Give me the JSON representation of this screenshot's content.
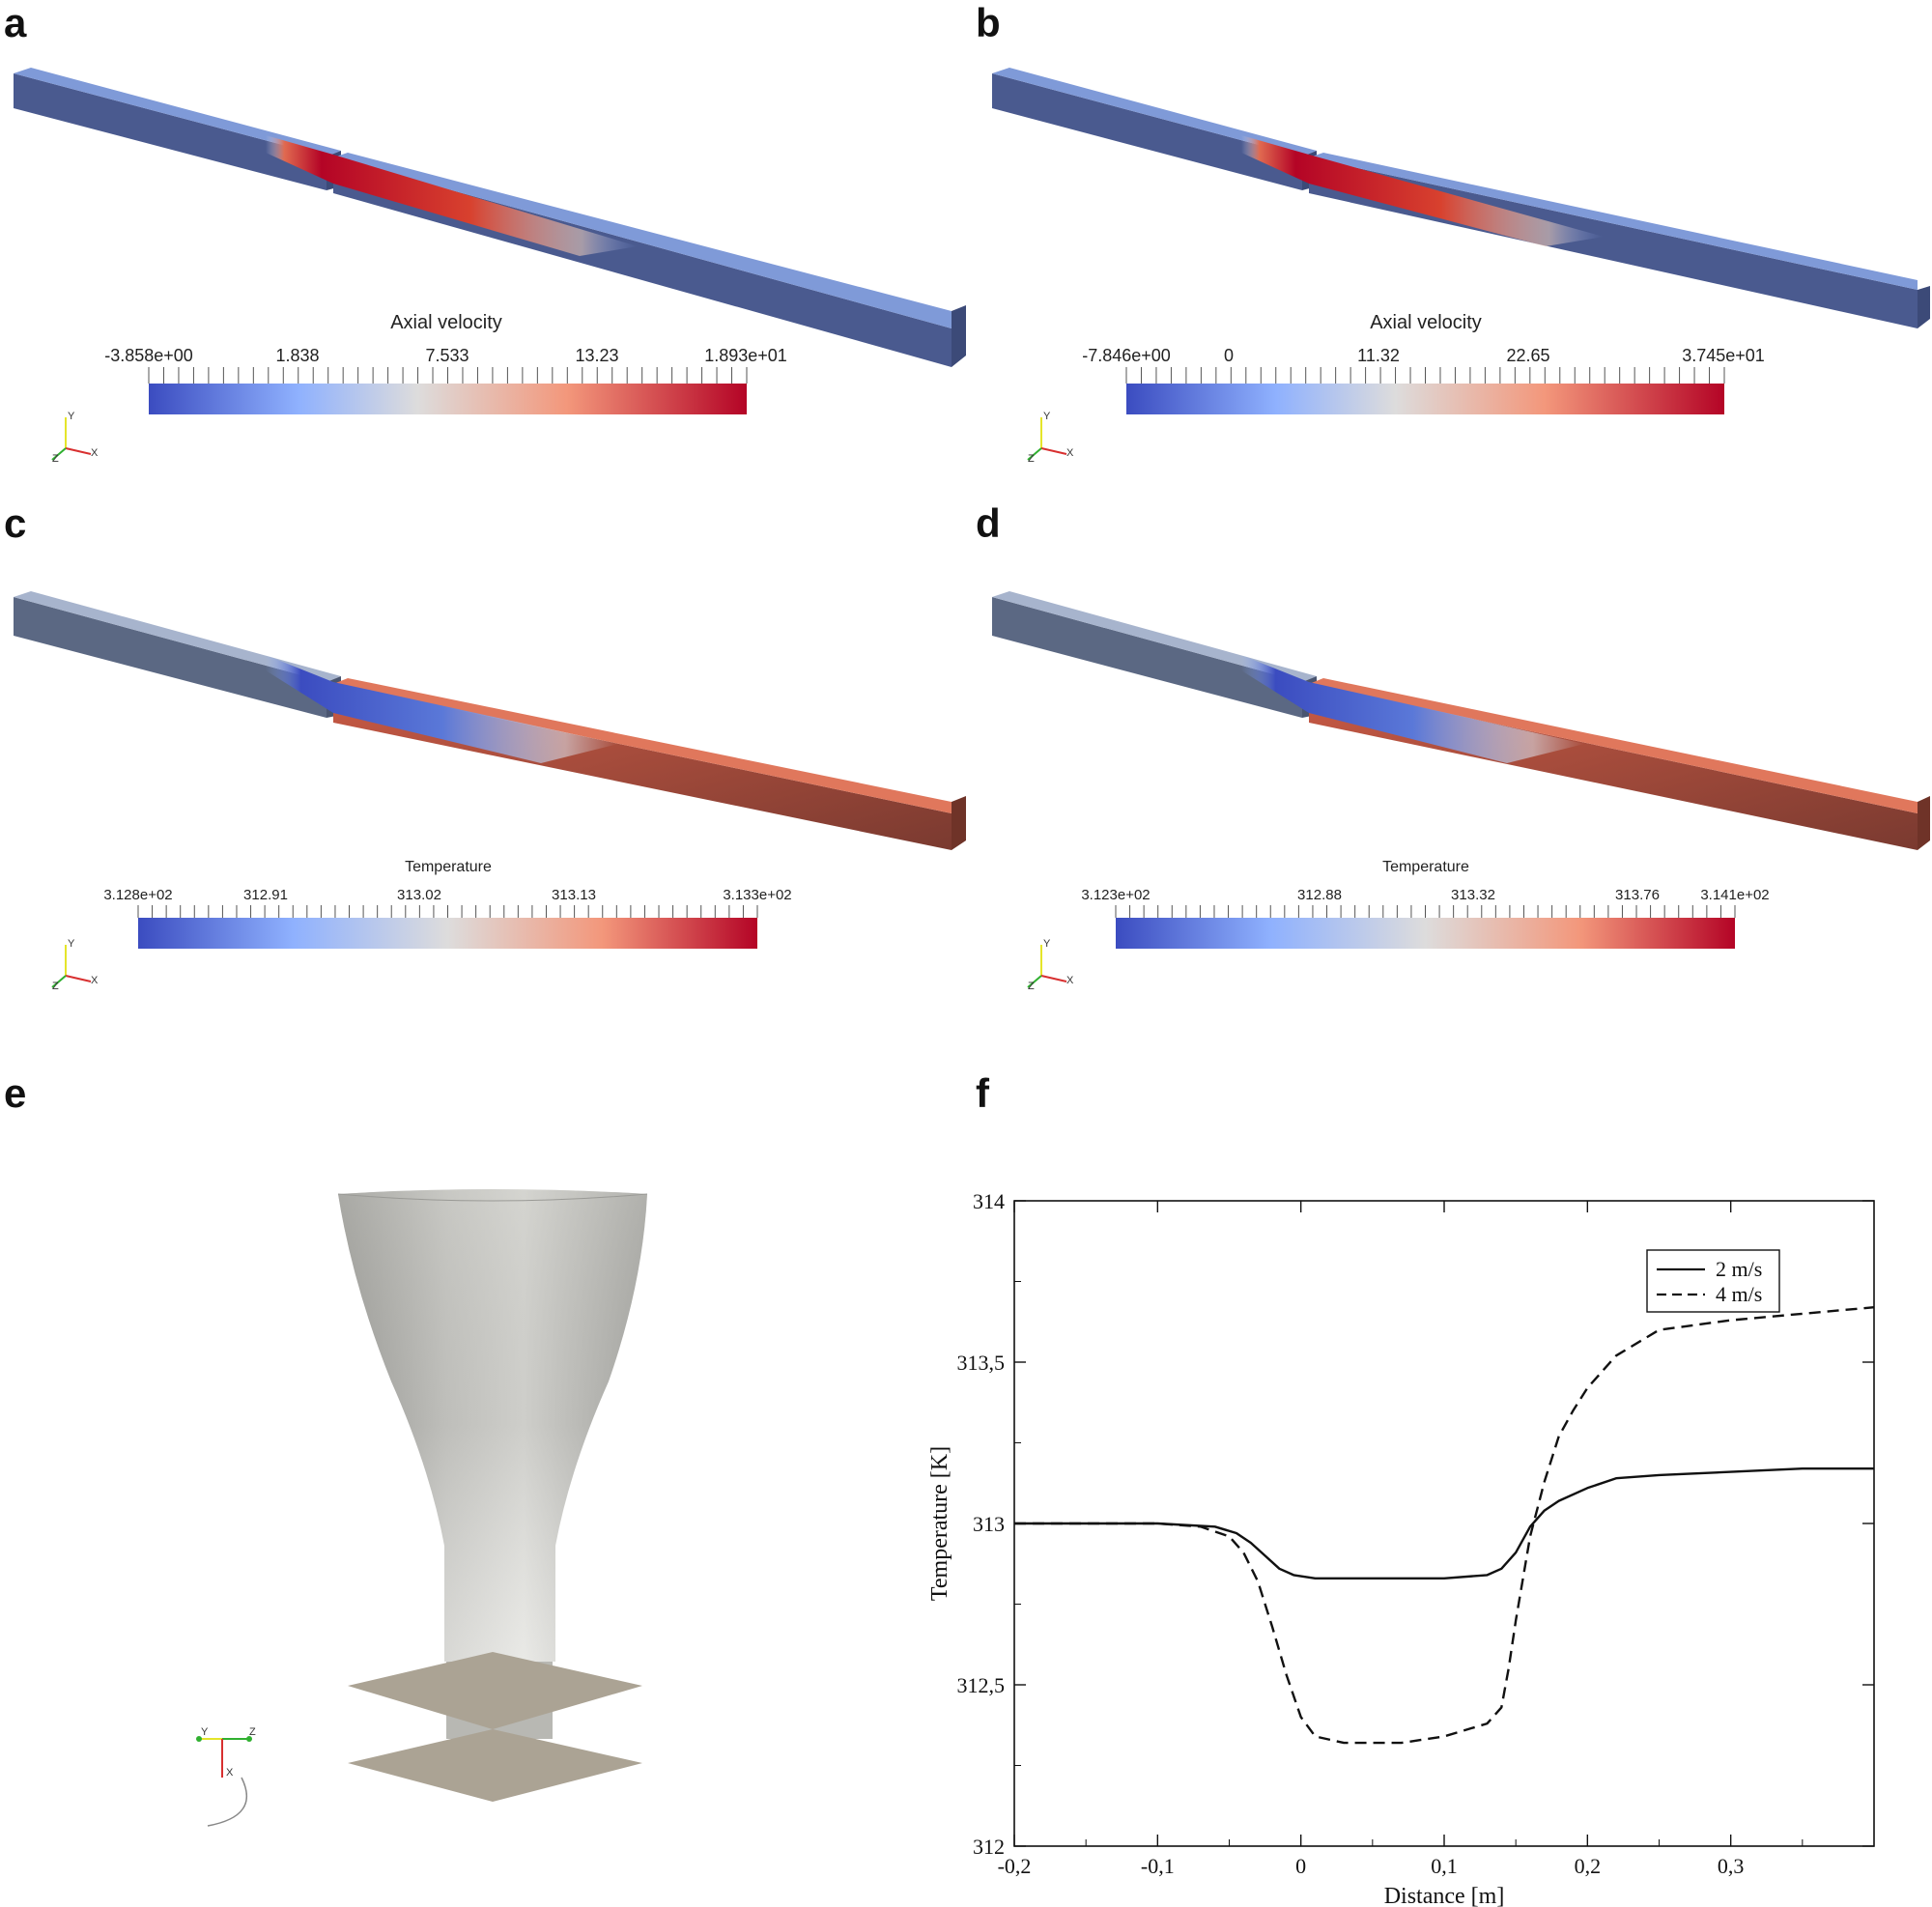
{
  "panels": {
    "a": {
      "letter": "a",
      "colorbar": {
        "title": "Axial velocity",
        "labels": [
          "-3.858e+00",
          "1.838",
          "7.533",
          "13.23",
          "1.893e+01"
        ]
      },
      "axes": {
        "y": "Y",
        "z": "Z",
        "x": "X"
      }
    },
    "b": {
      "letter": "b",
      "colorbar": {
        "title": "Axial velocity",
        "labels": [
          "-7.846e+00",
          "0",
          "11.32",
          "22.65",
          "3.745e+01"
        ]
      },
      "axes": {
        "y": "Y",
        "z": "Z",
        "x": "X"
      }
    },
    "c": {
      "letter": "c",
      "colorbar": {
        "title": "Temperature",
        "labels": [
          "3.128e+02",
          "312.91",
          "313.02",
          "313.13",
          "3.133e+02"
        ]
      },
      "axes": {
        "y": "Y",
        "z": "Z",
        "x": "X"
      }
    },
    "d": {
      "letter": "d",
      "colorbar": {
        "title": "Temperature",
        "labels": [
          "3.123e+02",
          "312.88",
          "313.32",
          "313.76",
          "3.141e+02"
        ]
      },
      "axes": {
        "y": "Y",
        "z": "Z",
        "x": "X"
      }
    },
    "e": {
      "letter": "e",
      "axes": {
        "y": "Y",
        "z": "Z",
        "x": "X"
      }
    },
    "f": {
      "letter": "f"
    }
  },
  "colors": {
    "cold": "#3b4cc0",
    "mid": "#dddddd",
    "hot": "#b40426"
  },
  "chart_data": {
    "type": "line",
    "xlabel": "Distance [m]",
    "ylabel": "Temperature [K]",
    "xlim": [
      -0.2,
      0.4
    ],
    "ylim": [
      312,
      314
    ],
    "xticks": [
      -0.2,
      -0.1,
      0,
      0.1,
      0.2,
      0.3
    ],
    "xtick_labels": [
      "-0,2",
      "-0,1",
      "0",
      "0,1",
      "0,2",
      "0,3"
    ],
    "yticks": [
      312,
      312.5,
      313,
      313.5,
      314
    ],
    "ytick_labels": [
      "312",
      "312,5",
      "313",
      "313,5",
      "314"
    ],
    "legend": "top-right",
    "series": [
      {
        "name": "2 m/s",
        "style": "solid",
        "x": [
          -0.2,
          -0.1,
          -0.06,
          -0.045,
          -0.035,
          -0.025,
          -0.015,
          -0.005,
          0.01,
          0.05,
          0.1,
          0.13,
          0.14,
          0.15,
          0.155,
          0.16,
          0.17,
          0.18,
          0.2,
          0.22,
          0.25,
          0.3,
          0.35,
          0.4
        ],
        "y": [
          313.0,
          313.0,
          312.99,
          312.97,
          312.94,
          312.9,
          312.86,
          312.84,
          312.83,
          312.83,
          312.83,
          312.84,
          312.86,
          312.91,
          312.95,
          312.99,
          313.04,
          313.07,
          313.11,
          313.14,
          313.15,
          313.16,
          313.17,
          313.17
        ]
      },
      {
        "name": "4 m/s",
        "style": "dashed",
        "x": [
          -0.2,
          -0.1,
          -0.07,
          -0.05,
          -0.04,
          -0.03,
          -0.02,
          -0.01,
          0,
          0.01,
          0.03,
          0.07,
          0.1,
          0.13,
          0.14,
          0.145,
          0.15,
          0.155,
          0.16,
          0.17,
          0.18,
          0.19,
          0.2,
          0.22,
          0.25,
          0.3,
          0.35,
          0.4
        ],
        "y": [
          313.0,
          313.0,
          312.99,
          312.96,
          312.91,
          312.82,
          312.68,
          312.53,
          312.4,
          312.34,
          312.32,
          312.32,
          312.34,
          312.38,
          312.43,
          312.55,
          312.7,
          312.83,
          312.96,
          313.13,
          313.27,
          313.35,
          313.42,
          313.52,
          313.6,
          313.63,
          313.65,
          313.67
        ]
      }
    ]
  }
}
